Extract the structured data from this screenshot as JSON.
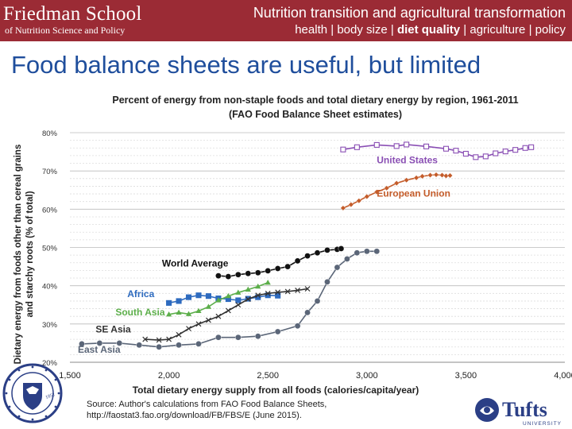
{
  "header": {
    "school_name": "Friedman School",
    "school_sub": "of Nutrition Science and Policy",
    "title": "Nutrition transition and agricultural transformation",
    "topics": [
      "health",
      "body size",
      "diet quality",
      "agriculture",
      "policy"
    ],
    "topic_separator": " | ",
    "highlighted_topic_index": 2,
    "color": "#9b2b35"
  },
  "slide_title": "Food balance sheets are useful, but limited",
  "chart_data": {
    "type": "line",
    "title": "Percent of energy from non-staple foods and total dietary energy by region, 1961-2011",
    "subtitle": "(FAO Food Balance Sheet estimates)",
    "xlabel": "Total dietary energy supply from all foods (calories/capita/year)",
    "ylabel_line1": "Dietary energy from foods other than cereal grains",
    "ylabel_line2": "and starchy roots (% of total)",
    "xlim": [
      1500,
      4000
    ],
    "ylim": [
      20,
      80
    ],
    "x_ticks": [
      1500,
      2000,
      2500,
      3000,
      3500,
      4000
    ],
    "x_tick_labels": [
      "1,500",
      "2,000",
      "2,500",
      "3,000",
      "3,500",
      "4,000"
    ],
    "y_ticks": [
      20,
      30,
      40,
      50,
      60,
      70,
      80
    ],
    "y_tick_labels": [
      "20%",
      "30%",
      "40%",
      "50%",
      "60%",
      "70%",
      "80%"
    ],
    "grid": true,
    "series": [
      {
        "name": "United States",
        "label": "United States",
        "color": "#8a4fb4",
        "marker": "square",
        "label_pos": [
          3050,
          72
        ],
        "x": [
          2880,
          2950,
          3050,
          3150,
          3200,
          3300,
          3400,
          3450,
          3500,
          3550,
          3600,
          3650,
          3700,
          3750,
          3800,
          3830
        ],
        "y": [
          75.6,
          76.2,
          76.8,
          76.5,
          76.9,
          76.4,
          75.8,
          75.3,
          74.5,
          73.6,
          73.8,
          74.6,
          75.1,
          75.5,
          76.0,
          76.2
        ]
      },
      {
        "name": "European Union",
        "label": "European Union",
        "color": "#c45c2a",
        "marker": "diamond",
        "label_pos": [
          3050,
          63.3
        ],
        "x": [
          2880,
          2920,
          2960,
          3000,
          3050,
          3100,
          3150,
          3200,
          3250,
          3280,
          3320,
          3350,
          3380,
          3400,
          3420
        ],
        "y": [
          60.3,
          61.2,
          62.2,
          63.3,
          64.5,
          65.5,
          66.8,
          67.6,
          68.2,
          68.6,
          68.9,
          69.0,
          68.9,
          68.7,
          68.8
        ]
      },
      {
        "name": "World Average",
        "label": "World Average",
        "color": "#111111",
        "marker": "circle",
        "label_pos": [
          1965,
          45
        ],
        "x": [
          2250,
          2300,
          2350,
          2400,
          2450,
          2500,
          2550,
          2600,
          2650,
          2700,
          2750,
          2800,
          2850,
          2870
        ],
        "y": [
          42.6,
          42.4,
          42.9,
          43.2,
          43.4,
          43.9,
          44.5,
          45.0,
          46.5,
          47.8,
          48.6,
          49.3,
          49.5,
          49.7
        ]
      },
      {
        "name": "Africa",
        "label": "Africa",
        "color": "#2e6bbf",
        "marker": "square",
        "label_pos": [
          1790,
          37
        ],
        "x": [
          2000,
          2050,
          2100,
          2150,
          2200,
          2250,
          2300,
          2350,
          2400,
          2450,
          2500,
          2550
        ],
        "y": [
          35.5,
          36.0,
          37.0,
          37.5,
          37.3,
          36.7,
          36.5,
          36.2,
          36.6,
          37.0,
          37.5,
          37.4
        ]
      },
      {
        "name": "South Asia",
        "label": "South Asia",
        "color": "#5cae4a",
        "marker": "triangle",
        "label_pos": [
          1730,
          32.3
        ],
        "x": [
          2000,
          2050,
          2100,
          2150,
          2200,
          2250,
          2300,
          2350,
          2400,
          2450,
          2500
        ],
        "y": [
          32.5,
          33.0,
          32.6,
          33.4,
          34.5,
          36.2,
          37.3,
          38.2,
          39.0,
          39.8,
          40.8
        ]
      },
      {
        "name": "SE Asia",
        "label": "SE Asia",
        "color": "#333333",
        "marker": "cross",
        "label_pos": [
          1630,
          27.8
        ],
        "x": [
          1880,
          1950,
          2000,
          2050,
          2100,
          2150,
          2200,
          2250,
          2300,
          2350,
          2400,
          2450,
          2500,
          2550,
          2600,
          2650,
          2700
        ],
        "y": [
          26.0,
          25.8,
          26.0,
          27.2,
          28.8,
          30.0,
          31.0,
          32.0,
          33.5,
          35.0,
          36.5,
          37.5,
          38.0,
          38.3,
          38.5,
          38.8,
          39.2
        ]
      },
      {
        "name": "East Asia",
        "label": "East Asia",
        "color": "#5b6678",
        "marker": "circle",
        "label_pos": [
          1540,
          22.5
        ],
        "x": [
          1560,
          1650,
          1750,
          1850,
          1950,
          2050,
          2150,
          2250,
          2350,
          2450,
          2550,
          2650,
          2700,
          2750,
          2800,
          2850,
          2900,
          2950,
          3000,
          3050
        ],
        "y": [
          24.8,
          25.0,
          25.0,
          24.5,
          24.0,
          24.5,
          24.8,
          26.5,
          26.5,
          26.8,
          28.0,
          29.5,
          33.0,
          36.0,
          41.0,
          44.8,
          47.0,
          48.6,
          49.0,
          49.0
        ]
      }
    ]
  },
  "source": {
    "line1": "Source: Author's calculations from FAO Food Balance Sheets,",
    "line2": "http://faostat3.fao.org/download/FB/FBS/E (June 2015)."
  },
  "seal": {
    "year": "1852"
  },
  "tufts_logo": {
    "name": "Tufts",
    "sub": "UNIVERSITY"
  }
}
